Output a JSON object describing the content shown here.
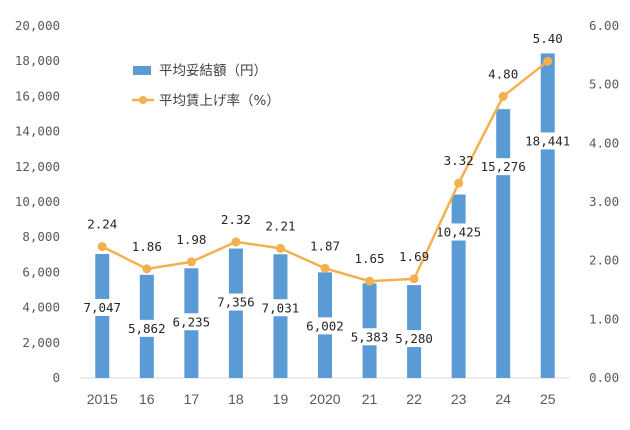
{
  "chart_data": {
    "type": "bar+line",
    "categories": [
      "2015",
      "16",
      "17",
      "18",
      "19",
      "2020",
      "21",
      "22",
      "23",
      "24",
      "25"
    ],
    "series": [
      {
        "name": "平均妥結額（円）",
        "type": "bar",
        "axis": "left",
        "values": [
          7047,
          5862,
          6235,
          7356,
          7031,
          6002,
          5383,
          5280,
          10425,
          15276,
          18441
        ],
        "labels": [
          "7,047",
          "5,862",
          "6,235",
          "7,356",
          "7,031",
          "6,002",
          "5,383",
          "5,280",
          "10,425",
          "15,276",
          "18,441"
        ]
      },
      {
        "name": "平均賃上げ率（%）",
        "type": "line",
        "axis": "right",
        "values": [
          2.24,
          1.86,
          1.98,
          2.32,
          2.21,
          1.87,
          1.65,
          1.69,
          3.32,
          4.8,
          5.4
        ],
        "labels": [
          "2.24",
          "1.86",
          "1.98",
          "2.32",
          "2.21",
          "1.87",
          "1.65",
          "1.69",
          "3.32",
          "4.80",
          "5.40"
        ]
      }
    ],
    "left_axis": {
      "ylim": [
        0,
        20000
      ],
      "ticks": [
        0,
        2000,
        4000,
        6000,
        8000,
        10000,
        12000,
        14000,
        16000,
        18000,
        20000
      ],
      "tick_labels": [
        "0",
        "2,000",
        "4,000",
        "6,000",
        "8,000",
        "10,000",
        "12,000",
        "14,000",
        "16,000",
        "18,000",
        "20,000"
      ]
    },
    "right_axis": {
      "ylim": [
        0,
        6
      ],
      "ticks": [
        0,
        1,
        2,
        3,
        4,
        5,
        6
      ],
      "tick_labels": [
        "0.00",
        "1.00",
        "2.00",
        "3.00",
        "4.00",
        "5.00",
        "6.00"
      ]
    },
    "grid": false,
    "legend_position": "top-left",
    "colors": {
      "bar": "#5b9bd5",
      "line": "#f4b04f"
    }
  }
}
